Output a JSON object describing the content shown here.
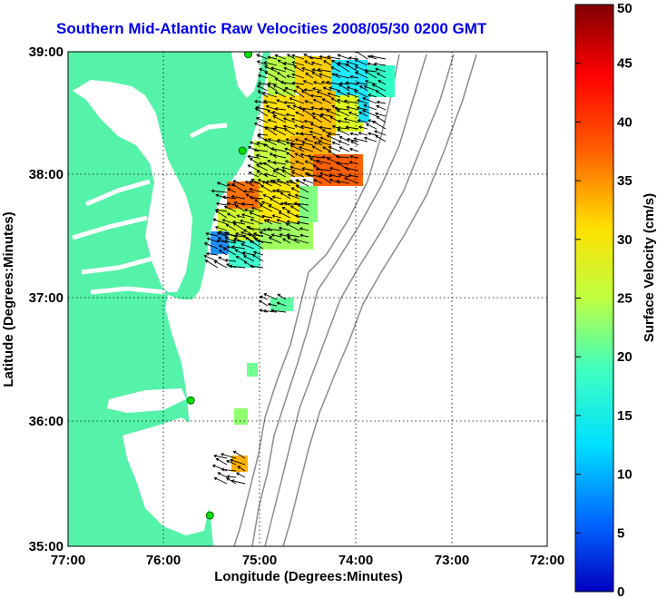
{
  "title": "Southern Mid-Atlantic Raw Velocities 2008/05/30 0200 GMT",
  "x_axis": {
    "label": "Longitude (Degrees:Minutes)",
    "ticks": [
      "77:00",
      "76:00",
      "75:00",
      "74:00",
      "73:00",
      "72:00"
    ]
  },
  "y_axis": {
    "label": "Latitude (Degrees:Minutes)",
    "ticks": [
      "39:00",
      "38:00",
      "37:00",
      "36:00",
      "35:00"
    ]
  },
  "colorbar": {
    "label": "Surface Velocity (cm/s)",
    "ticks": [
      "50",
      "45",
      "40",
      "35",
      "30",
      "25",
      "20",
      "15",
      "10",
      "5",
      "0"
    ],
    "range": [
      0,
      50
    ],
    "colormap": "jet"
  },
  "map": {
    "lon_range": [
      -77,
      -72
    ],
    "lat_range": [
      35,
      39
    ],
    "land_color": "#55f2aa",
    "water_color": "#ffffff",
    "bathymetry_color": "#8c8c8c",
    "grid": "dotted"
  },
  "stations": [
    {
      "lon": -75.12,
      "lat": 38.98
    },
    {
      "lon": -75.18,
      "lat": 38.2
    },
    {
      "lon": -75.72,
      "lat": 36.18
    },
    {
      "lon": -75.52,
      "lat": 35.25
    }
  ]
}
